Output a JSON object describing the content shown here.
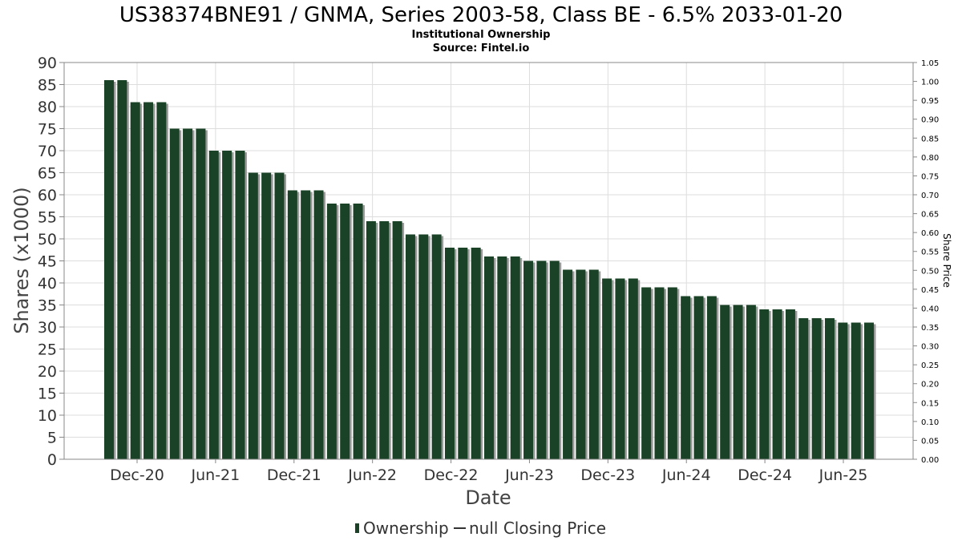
{
  "chart_data": {
    "type": "bar",
    "title": "US38374BNE91 / GNMA, Series 2003-58, Class BE - 6.5% 2033-01-20",
    "subtitle_lines": [
      "Institutional Ownership",
      "Source: Fintel.io"
    ],
    "xlabel": "Date",
    "ylabel": "Shares (x1000)",
    "y2label": "Share Price",
    "ylim": [
      0,
      90
    ],
    "y_ticks": [
      0,
      5,
      10,
      15,
      20,
      25,
      30,
      35,
      40,
      45,
      50,
      55,
      60,
      65,
      70,
      75,
      80,
      85,
      90
    ],
    "y2lim": [
      0.0,
      1.05
    ],
    "y2_ticks": [
      "0.00",
      "0.05",
      "0.10",
      "0.15",
      "0.20",
      "0.25",
      "0.30",
      "0.35",
      "0.40",
      "0.45",
      "0.50",
      "0.55",
      "0.60",
      "0.65",
      "0.70",
      "0.75",
      "0.80",
      "0.85",
      "0.90",
      "0.95",
      "1.00",
      "1.05"
    ],
    "x_tick_labels": [
      "Dec-20",
      "Jun-21",
      "Dec-21",
      "Jun-22",
      "Dec-22",
      "Jun-23",
      "Dec-23",
      "Jun-24",
      "Dec-24",
      "Jun-25"
    ],
    "grid": true,
    "legend_position": "bottom",
    "colors": {
      "bar": "#1a4226",
      "bar_shadow": "#9a9a9a",
      "grid": "#dddddd",
      "plot_border": "#888888"
    },
    "series": [
      {
        "name": "Ownership",
        "values": [
          86,
          86,
          81,
          81,
          81,
          75,
          75,
          75,
          70,
          70,
          70,
          65,
          65,
          65,
          61,
          61,
          61,
          58,
          58,
          58,
          54,
          54,
          54,
          51,
          51,
          51,
          48,
          48,
          48,
          46,
          46,
          46,
          45,
          45,
          45,
          43,
          43,
          43,
          41,
          41,
          41,
          39,
          39,
          39,
          37,
          37,
          37,
          35,
          35,
          35,
          34,
          34,
          34,
          32,
          32,
          32,
          31,
          31,
          31
        ]
      }
    ],
    "legend": [
      "Ownership",
      "null Closing Price"
    ]
  }
}
